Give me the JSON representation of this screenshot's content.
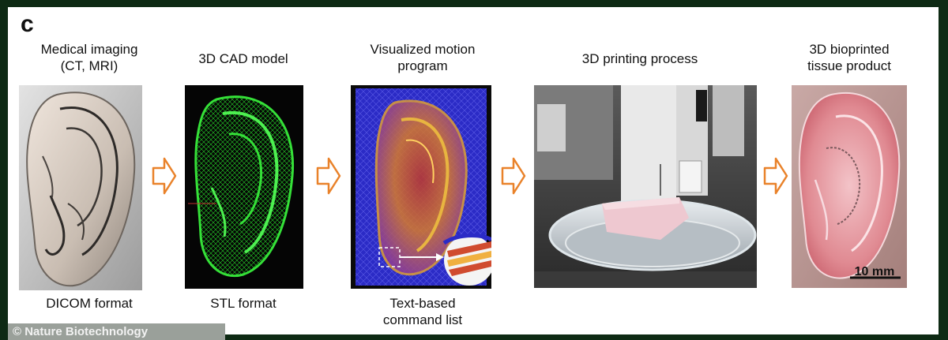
{
  "panel_label": "c",
  "stages": [
    {
      "title": "Medical imaging\n(CT, MRI)",
      "caption": "DICOM format"
    },
    {
      "title": "3D CAD model",
      "caption": "STL format"
    },
    {
      "title": "Visualized motion\nprogram",
      "caption": "Text-based\ncommand list"
    },
    {
      "title": "3D printing process",
      "caption": ""
    },
    {
      "title": "3D bioprinted\ntissue product",
      "caption": ""
    }
  ],
  "scale_bar": "10 mm",
  "watermark": "© Nature Biotechnology",
  "colors": {
    "arrow": "#e9822a",
    "cad_green": "#27d12a",
    "program_blue": "#2a2ac4",
    "tissue_pink": "#e08a92"
  }
}
